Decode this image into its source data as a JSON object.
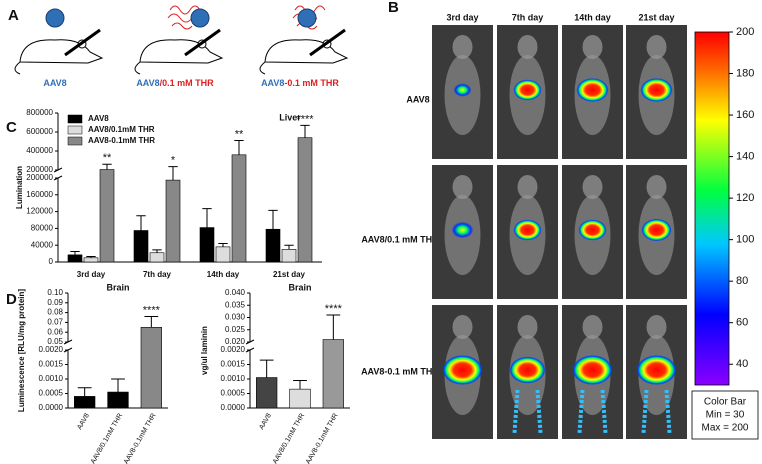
{
  "figure": {
    "panels": [
      "A",
      "B",
      "C",
      "D"
    ],
    "panel_a": {
      "labels": [
        [
          "AAV8"
        ],
        [
          "AAV8",
          "/0.1 mM THR"
        ],
        [
          "AAV8",
          "-0.1 mM THR"
        ]
      ]
    },
    "panel_b": {
      "days": [
        "3rd day",
        "7th day",
        "14th day",
        "21st day"
      ],
      "rows": [
        "AAV8",
        "AAV8/0.1 mM THR",
        "AAV8-0.1 mM THR"
      ],
      "colorbar": {
        "lim": [
          30,
          200
        ],
        "ticks": [
          40,
          60,
          80,
          100,
          120,
          140,
          160,
          180,
          200
        ],
        "box": [
          "Color Bar",
          "Min = 30",
          "Max = 200"
        ]
      }
    }
  },
  "chart_data": [
    {
      "type": "bar",
      "title": "Liver",
      "ylabel": "Lumination",
      "categories": [
        "3rd day",
        "7th day",
        "14th day",
        "21st day"
      ],
      "series": [
        {
          "name": "AAV8",
          "color": "#000000",
          "values": [
            17000,
            75000,
            82000,
            78000
          ],
          "errors": [
            8000,
            35000,
            45000,
            45000
          ]
        },
        {
          "name": "AAV8/0.1mM THR",
          "color": "#dddddd",
          "values": [
            10000,
            22000,
            36000,
            30000
          ],
          "errors": [
            3000,
            7000,
            8000,
            10000
          ]
        },
        {
          "name": "AAV8-0.1mM THR",
          "color": "#888888",
          "values": [
            205000,
            195000,
            360000,
            540000
          ],
          "errors": [
            55000,
            40000,
            150000,
            130000
          ]
        }
      ],
      "annotations": [
        "**",
        "*",
        "**",
        "****"
      ],
      "ylim_lower": [
        0,
        200000
      ],
      "yticks_lower": [
        0,
        40000,
        80000,
        120000,
        160000,
        200000
      ],
      "ylim_upper": [
        200000,
        800000
      ],
      "yticks_upper": [
        200000,
        400000,
        600000,
        800000
      ],
      "legend": "upper left"
    },
    {
      "type": "bar",
      "title": "Brain",
      "ylabel": "Luminescence [RLU/mg protein]",
      "categories": [
        "AAV8",
        "AAV8/0.1mM THR",
        "AAV8-0.1mM THR"
      ],
      "values": [
        0.0004,
        0.00055,
        0.065
      ],
      "errors": [
        0.0003,
        0.00045,
        0.011
      ],
      "colors": [
        "#000000",
        "#000000",
        "#888888"
      ],
      "annotations": [
        null,
        null,
        "****"
      ],
      "ylim_lower": [
        0,
        0.002
      ],
      "yticks_lower": [
        {
          "value": 0,
          "label": "0.0000"
        },
        0.0005,
        {
          "value": 0.001,
          "label": "0.0010"
        },
        0.0015,
        {
          "value": 0.002,
          "label": "0.0020"
        }
      ],
      "ylim_upper": [
        0.05,
        0.1
      ],
      "yticks_upper": [
        0.05,
        0.06,
        0.07,
        0.08,
        0.09,
        {
          "value": 0.1,
          "label": "0.10"
        }
      ]
    },
    {
      "type": "bar",
      "title": "Brain",
      "ylabel": "vg/ul laminin",
      "categories": [
        "AAV8",
        "AAV8/0.1mM THR",
        "AAV8-0.1mM THR"
      ],
      "values": [
        0.00105,
        0.00065,
        0.021
      ],
      "errors": [
        0.0006,
        0.0003,
        0.01
      ],
      "colors": [
        "#444444",
        "#dddddd",
        "#999999"
      ],
      "annotations": [
        null,
        null,
        "****"
      ],
      "ylim_lower": [
        0,
        0.002
      ],
      "yticks_lower": [
        {
          "value": 0,
          "label": "0.0000"
        },
        0.0005,
        {
          "value": 0.001,
          "label": "0.0010"
        },
        0.0015,
        {
          "value": 0.002,
          "label": "0.0020"
        }
      ],
      "ylim_upper": [
        0.02,
        0.04
      ],
      "yticks_upper": [
        {
          "value": 0.02,
          "label": "0.020"
        },
        0.025,
        {
          "value": 0.03,
          "label": "0.030"
        },
        0.035,
        {
          "value": 0.04,
          "label": "0.040"
        }
      ]
    }
  ]
}
